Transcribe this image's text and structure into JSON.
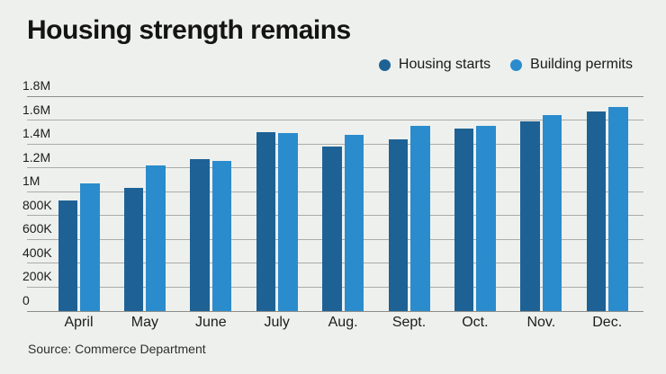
{
  "title": "Housing strength remains",
  "source": "Source: Commerce Department",
  "legend": {
    "items": [
      {
        "label": "Housing starts",
        "color": "#1e6295"
      },
      {
        "label": "Building permits",
        "color": "#2b8ccd"
      }
    ]
  },
  "colors": {
    "background": "#eef0ed",
    "grid_inner": "#abaca9",
    "grid_edge": "#8d8e8b",
    "title_text": "#141414",
    "axis_text": "#1c1c1c",
    "source_text": "#2e2e2e",
    "dark_blue": "#1e6295",
    "light_blue": "#2b8ccd"
  },
  "chart_data": {
    "type": "bar",
    "title": "Housing strength remains",
    "categories": [
      "April",
      "May",
      "June",
      "July",
      "Aug.",
      "Sept.",
      "Oct.",
      "Nov.",
      "Dec."
    ],
    "series": [
      {
        "name": "Housing starts",
        "color": "#1e6295",
        "values_millions": [
          0.93,
          1.03,
          1.27,
          1.5,
          1.38,
          1.44,
          1.53,
          1.59,
          1.67
        ]
      },
      {
        "name": "Building permits",
        "color": "#2b8ccd",
        "values_millions": [
          1.07,
          1.22,
          1.26,
          1.49,
          1.48,
          1.55,
          1.55,
          1.64,
          1.71
        ]
      }
    ],
    "xlabel": "",
    "ylabel": "",
    "ylim_millions": [
      0,
      1.8
    ],
    "ytick_labels": [
      "1.8M",
      "1.6M",
      "1.4M",
      "1.2M",
      "1M",
      "800K",
      "600K",
      "400K",
      "200K",
      "0"
    ],
    "grid": true,
    "legend_position": "top-right",
    "source": "Source: Commerce Department"
  }
}
